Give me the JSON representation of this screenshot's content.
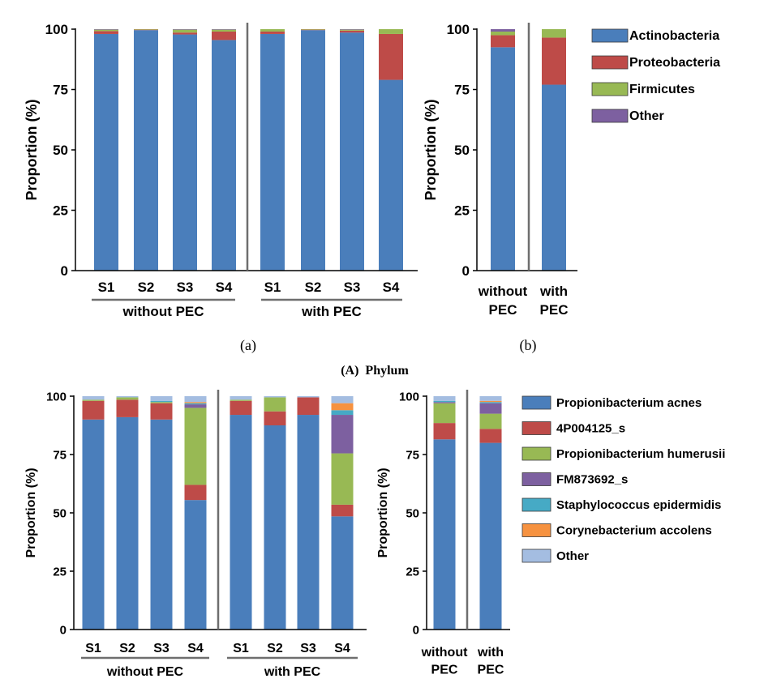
{
  "figure": {
    "panel_a_label": "(a)",
    "panel_b_label": "(b)",
    "phylum_caption": "(A)  Phylum"
  },
  "chart_data": [
    {
      "id": "phylum_samples",
      "type": "bar",
      "stacked": true,
      "ylabel": "Proportion (%)",
      "ylim": [
        0,
        100
      ],
      "yticks": [
        0,
        25,
        50,
        75,
        100
      ],
      "categories": [
        "S1",
        "S2",
        "S3",
        "S4",
        "S1",
        "S2",
        "S3",
        "S4"
      ],
      "groups": [
        {
          "label": "without PEC",
          "count": 4
        },
        {
          "label": "with PEC",
          "count": 4
        }
      ],
      "series": [
        {
          "name": "Actinobacteria",
          "values": [
            98,
            99.6,
            97.8,
            95.5,
            98,
            99.6,
            98.6,
            79
          ]
        },
        {
          "name": "Proteobacteria",
          "values": [
            1.2,
            0.2,
            0.8,
            3.5,
            1,
            0.2,
            0.8,
            19
          ]
        },
        {
          "name": "Firmicutes",
          "values": [
            0.6,
            0.2,
            1.2,
            0.8,
            1,
            0.2,
            0.4,
            2
          ]
        },
        {
          "name": "Other",
          "values": [
            0.2,
            0,
            0.2,
            0.2,
            0,
            0,
            0.2,
            0
          ]
        }
      ]
    },
    {
      "id": "phylum_pooled",
      "type": "bar",
      "stacked": true,
      "ylabel": "Proportion (%)",
      "ylim": [
        0,
        100
      ],
      "yticks": [
        0,
        25,
        50,
        75,
        100
      ],
      "categories": [
        "without\nPEC",
        "with\nPEC"
      ],
      "series": [
        {
          "name": "Actinobacteria",
          "values": [
            92.5,
            77
          ]
        },
        {
          "name": "Proteobacteria",
          "values": [
            5,
            19.5
          ]
        },
        {
          "name": "Firmicutes",
          "values": [
            1.5,
            3.5
          ]
        },
        {
          "name": "Other",
          "values": [
            1,
            0
          ]
        }
      ],
      "legend": [
        "Actinobacteria",
        "Proteobacteria",
        "Firmicutes",
        "Other"
      ]
    },
    {
      "id": "species_samples",
      "type": "bar",
      "stacked": true,
      "ylabel": "Proportion (%)",
      "ylim": [
        0,
        100
      ],
      "yticks": [
        0,
        25,
        50,
        75,
        100
      ],
      "categories": [
        "S1",
        "S2",
        "S3",
        "S4",
        "S1",
        "S2",
        "S3",
        "S4"
      ],
      "groups": [
        {
          "label": "without PEC",
          "count": 4
        },
        {
          "label": "with PEC",
          "count": 4
        }
      ],
      "series": [
        {
          "name": "Propionibacterium acnes",
          "values": [
            90,
            91,
            90,
            55.5,
            92,
            87.5,
            92,
            48.5
          ]
        },
        {
          "name": "4P004125_s",
          "values": [
            8,
            7.5,
            7,
            6.5,
            6,
            6,
            7.5,
            5
          ]
        },
        {
          "name": "Propionibacterium humerusii",
          "values": [
            0.5,
            1,
            0.5,
            33,
            0.5,
            6,
            0,
            22
          ]
        },
        {
          "name": "FM873692_s",
          "values": [
            0,
            0,
            0,
            1.5,
            0,
            0,
            0,
            16.5
          ]
        },
        {
          "name": "Staphylococcus epidermidis",
          "values": [
            0,
            0,
            0.5,
            0.5,
            0,
            0,
            0,
            2
          ]
        },
        {
          "name": "Corynebacterium accolens",
          "values": [
            0,
            0,
            0,
            0.5,
            0,
            0,
            0,
            3
          ]
        },
        {
          "name": "Other",
          "values": [
            1.5,
            0.5,
            2,
            2.5,
            1.5,
            0.5,
            0.5,
            3
          ]
        }
      ]
    },
    {
      "id": "species_pooled",
      "type": "bar",
      "stacked": true,
      "ylabel": "Proportion (%)",
      "ylim": [
        0,
        100
      ],
      "yticks": [
        0,
        25,
        50,
        75,
        100
      ],
      "categories": [
        "without\nPEC",
        "with\nPEC"
      ],
      "series": [
        {
          "name": "Propionibacterium acnes",
          "values": [
            81.5,
            80
          ]
        },
        {
          "name": "4P004125_s",
          "values": [
            7,
            6
          ]
        },
        {
          "name": "Propionibacterium humerusii",
          "values": [
            8.5,
            6.5
          ]
        },
        {
          "name": "FM873692_s",
          "values": [
            0.5,
            4.5
          ]
        },
        {
          "name": "Staphylococcus epidermidis",
          "values": [
            0.5,
            0.5
          ]
        },
        {
          "name": "Corynebacterium accolens",
          "values": [
            0,
            0.5
          ]
        },
        {
          "name": "Other",
          "values": [
            2,
            2
          ]
        }
      ],
      "legend": [
        "Propionibacterium acnes",
        "4P004125_s",
        "Propionibacterium humerusii",
        "FM873692_s",
        "Staphylococcus epidermidis",
        "Corynebacterium accolens",
        "Other"
      ]
    }
  ],
  "colors": {
    "Actinobacteria": "#4a7ebb",
    "Proteobacteria": "#be4b48",
    "Firmicutes": "#98b954",
    "Other_phylum": "#7d60a0",
    "Propionibacterium acnes": "#4a7ebb",
    "4P004125_s": "#be4b48",
    "Propionibacterium humerusii": "#98b954",
    "FM873692_s": "#7d60a0",
    "Staphylococcus epidermidis": "#46aac5",
    "Corynebacterium accolens": "#f69240",
    "Other_species": "#a4bde1",
    "axis": "#000000",
    "divider": "#6e6e6e"
  }
}
